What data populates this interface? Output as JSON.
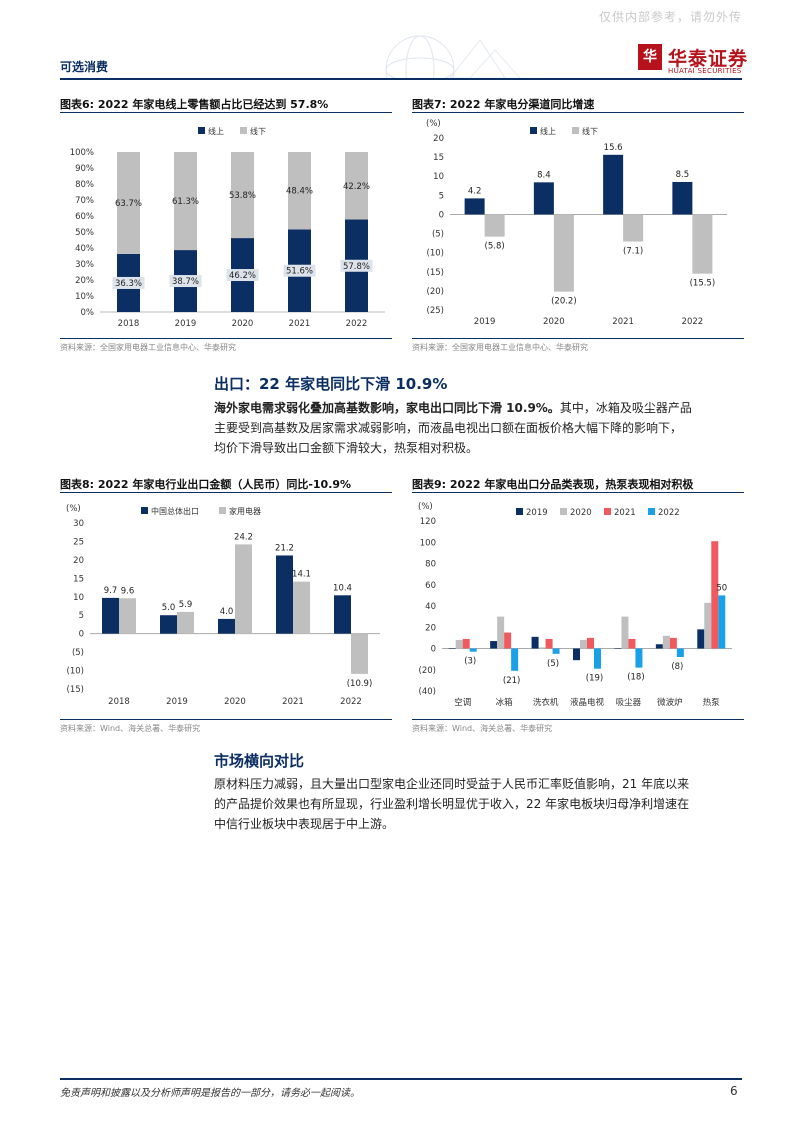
{
  "header": {
    "watermark": "仅供内部参考，请勿外传",
    "section": "可选消费",
    "logo_cn": "华泰证券",
    "logo_en": "HUATAI SECURITIES",
    "logo_mark": "华"
  },
  "figures": {
    "fig6": {
      "title": "图表6:  2022 年家电线上零售额占比已经达到 57.8%",
      "source": "资料来源：全国家用电器工业信息中心、华泰研究"
    },
    "fig7": {
      "title": "图表7:  2022 年家电分渠道同比增速",
      "source": "资料来源：全国家用电器工业信息中心、华泰研究"
    },
    "fig8": {
      "title": "图表8:  2022 年家电行业出口金额（人民币）同比-10.9%",
      "source": "资料来源：Wind、海关总署、华泰研究"
    },
    "fig9": {
      "title": "图表9:  2022 年家电出口分品类表现，热泵表现相对积极",
      "source": "资料来源：Wind、海关总署、华泰研究"
    }
  },
  "section_export": {
    "heading": "出口：22 年家电同比下滑 10.9%",
    "lead_bold": "海外家电需求弱化叠加高基数影响，家电出口同比下滑 10.9%。",
    "line1_rest": "其中，冰箱及吸尘器产品",
    "line2": "主要受到高基数及居家需求减弱影响，而液晶电视出口额在面板价格大幅下降的影响下，",
    "line3": "均价下滑导致出口金额下滑较大，热泵相对积极。"
  },
  "section_market": {
    "heading": "市场横向对比",
    "line1": "原材料压力减弱，且大量出口型家电企业还同时受益于人民币汇率贬值影响，21 年底以来",
    "line2": "的产品提价效果也有所显现，行业盈利增长明显优于收入，22 年家电板块归母净利增速在",
    "line3": "中信行业板块中表现居于中上游。"
  },
  "footer": {
    "disclaimer": "免责声明和披露以及分析师声明是报告的一部分，请务必一起阅读。",
    "page": "6"
  },
  "colors": {
    "navy": "#0b2e63",
    "gray": "#bfbfbf",
    "red": "#f05a5f",
    "cyan": "#1aa0e6",
    "brand": "#b5121b"
  },
  "chart_data": [
    {
      "id": "fig6",
      "type": "bar",
      "stacked": true,
      "percent": true,
      "categories": [
        "2018",
        "2019",
        "2020",
        "2021",
        "2022"
      ],
      "series": [
        {
          "name": "线上",
          "values": [
            36.3,
            38.7,
            46.2,
            51.6,
            57.8
          ],
          "labels": [
            "36.3%",
            "38.7%",
            "46.2%",
            "51.6%",
            "57.8%"
          ]
        },
        {
          "name": "线下",
          "values": [
            63.7,
            61.3,
            53.8,
            48.4,
            42.2
          ],
          "labels": [
            "63.7%",
            "61.3%",
            "53.8%",
            "48.4%",
            "42.2%"
          ]
        }
      ],
      "ylim": [
        0,
        100
      ],
      "yticks": [
        "0%",
        "10%",
        "20%",
        "30%",
        "40%",
        "50%",
        "60%",
        "70%",
        "80%",
        "90%",
        "100%"
      ],
      "legend": "top"
    },
    {
      "id": "fig7",
      "type": "bar",
      "unit": "(%)",
      "categories": [
        "2019",
        "2020",
        "2021",
        "2022"
      ],
      "series": [
        {
          "name": "线上",
          "values": [
            4.2,
            8.4,
            15.6,
            8.5
          ],
          "labels": [
            "4.2",
            "8.4",
            "15.6",
            "8.5"
          ]
        },
        {
          "name": "线下",
          "values": [
            -5.8,
            -20.2,
            -7.1,
            -15.5
          ],
          "labels": [
            "(5.8)",
            "(20.2)",
            "(7.1)",
            "(15.5)"
          ]
        }
      ],
      "ylim": [
        -25,
        20
      ],
      "yticks": [
        "(25)",
        "(20)",
        "(15)",
        "(10)",
        "(5)",
        "0",
        "5",
        "10",
        "15",
        "20"
      ],
      "legend": "top"
    },
    {
      "id": "fig8",
      "type": "bar",
      "unit": "(%)",
      "categories": [
        "2018",
        "2019",
        "2020",
        "2021",
        "2022"
      ],
      "series": [
        {
          "name": "中国总体出口",
          "values": [
            9.7,
            5.0,
            4.0,
            21.2,
            10.4
          ],
          "labels": [
            "9.7",
            "5.0",
            "4.0",
            "21.2",
            "10.4"
          ]
        },
        {
          "name": "家用电器",
          "values": [
            9.6,
            5.9,
            24.2,
            14.1,
            -10.9
          ],
          "labels": [
            "9.6",
            "5.9",
            "24.2",
            "14.1",
            "(10.9)"
          ]
        }
      ],
      "ylim": [
        -15,
        30
      ],
      "yticks": [
        "(15)",
        "(10)",
        "(5)",
        "0",
        "5",
        "10",
        "15",
        "20",
        "25",
        "30"
      ],
      "legend": "top"
    },
    {
      "id": "fig9",
      "type": "bar",
      "unit": "(%)",
      "categories": [
        "空调",
        "冰箱",
        "洗衣机",
        "液晶电视",
        "吸尘器",
        "微波炉",
        "热泵"
      ],
      "series": [
        {
          "name": "2019",
          "values": [
            0,
            7,
            11,
            -11,
            0,
            4,
            18
          ]
        },
        {
          "name": "2020",
          "values": [
            8,
            30,
            1,
            8,
            30,
            12,
            43
          ]
        },
        {
          "name": "2021",
          "values": [
            9,
            15,
            9,
            10,
            9,
            10,
            101
          ]
        },
        {
          "name": "2022",
          "values": [
            -3,
            -21,
            -5,
            -19,
            -18,
            -8,
            50
          ]
        }
      ],
      "data_labels": [
        {
          "text": "(3)",
          "category": "空调",
          "series": "2022"
        },
        {
          "text": "(21)",
          "category": "冰箱",
          "series": "2022"
        },
        {
          "text": "(5)",
          "category": "洗衣机",
          "series": "2022"
        },
        {
          "text": "(19)",
          "category": "液晶电视",
          "series": "2022"
        },
        {
          "text": "(18)",
          "category": "吸尘器",
          "series": "2022"
        },
        {
          "text": "(8)",
          "category": "微波炉",
          "series": "2022"
        },
        {
          "text": "50",
          "category": "热泵",
          "series": "2022"
        }
      ],
      "ylim": [
        -40,
        120
      ],
      "yticks": [
        "(40)",
        "(20)",
        "0",
        "20",
        "40",
        "60",
        "80",
        "100",
        "120"
      ],
      "legend": "top"
    }
  ]
}
